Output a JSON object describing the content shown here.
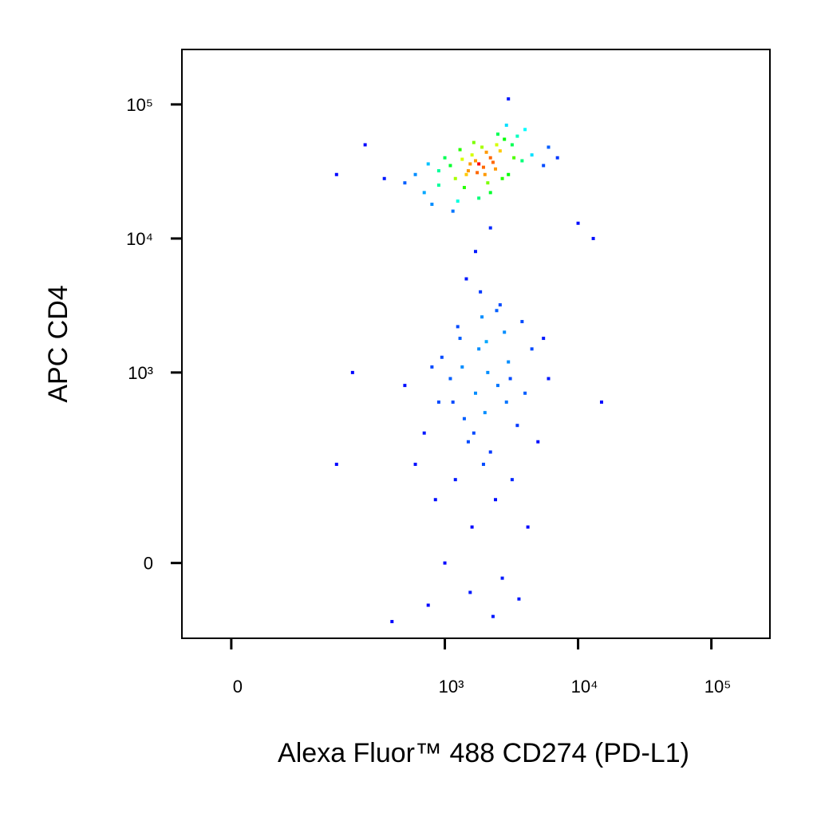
{
  "chart_data": {
    "type": "scatter",
    "xlabel": "Alexa Fluor™ 488 CD274 (PD-L1)",
    "ylabel": "APC CD4",
    "xscale": "biexponential",
    "yscale": "biexponential",
    "xlim": [
      -48,
      275000
    ],
    "ylim": [
      -128,
      257000
    ],
    "xticks": [
      0,
      {
        "value": 1000,
        "label": "10³"
      },
      {
        "value": 10000,
        "label": "10⁴"
      },
      {
        "value": 100000,
        "label": "10⁵"
      }
    ],
    "yticks": [
      0,
      {
        "value": 1000,
        "label": "10³"
      },
      {
        "value": 10000,
        "label": "10⁴"
      },
      {
        "value": 100000,
        "label": "10⁵"
      }
    ],
    "color_by_density": true,
    "x": [
      1800,
      1500,
      2200,
      1200,
      2600,
      900,
      3200,
      1600,
      2000,
      1100,
      2400,
      1900,
      700,
      3800,
      1400,
      2800,
      1000,
      2100,
      1700,
      3000,
      600,
      4500,
      1300,
      2500,
      800,
      1800,
      3500,
      1550,
      2300,
      1950,
      500,
      5500,
      1250,
      2700,
      1650,
      900,
      4000,
      2050,
      1450,
      3300,
      350,
      7000,
      1150,
      2900,
      750,
      2200,
      6000,
      1750,
      1350,
      2450,
      150,
      10000,
      13000,
      3000,
      250,
      2000,
      1500,
      2500,
      1200,
      3000,
      900,
      1800,
      2200,
      3500,
      1100,
      2800,
      1600,
      700,
      4000,
      1300,
      2400,
      1900,
      800,
      3200,
      1700,
      600,
      4500,
      1400,
      2600,
      1000,
      2100,
      5000,
      1250,
      2900,
      1550,
      500,
      6000,
      1850,
      2300,
      950,
      3800,
      1450,
      2700,
      750,
      4200,
      1650,
      2050,
      3100,
      1150,
      2450,
      850,
      3600,
      1350,
      5500,
      1950,
      200,
      150,
      400,
      15000,
      1700,
      2200
    ],
    "y": [
      36000,
      32000,
      40000,
      28000,
      45000,
      25000,
      50000,
      42000,
      30000,
      35000,
      33000,
      48000,
      22000,
      38000,
      24000,
      55000,
      40000,
      26000,
      38000,
      30000,
      30000,
      42000,
      46000,
      60000,
      18000,
      20000,
      58000,
      36000,
      37000,
      34000,
      26000,
      35000,
      19000,
      28000,
      52000,
      32000,
      65000,
      44000,
      30000,
      40000,
      28000,
      40000,
      16000,
      70000,
      36000,
      22000,
      48000,
      31000,
      39000,
      50000,
      30000,
      13000,
      10000,
      110000,
      50000,
      500,
      300,
      800,
      150,
      1200,
      600,
      1500,
      250,
      400,
      900,
      2000,
      50,
      350,
      700,
      1800,
      100,
      2600,
      1100,
      150,
      700,
      200,
      1500,
      450,
      3200,
      0,
      1000,
      300,
      2200,
      600,
      -40,
      800,
      900,
      4000,
      -80,
      1300,
      2400,
      5000,
      -20,
      -60,
      50,
      350,
      1700,
      900,
      600,
      2900,
      100,
      -50,
      1100,
      1800,
      200,
      1000,
      200,
      -90,
      600,
      8000,
      12000
    ]
  }
}
